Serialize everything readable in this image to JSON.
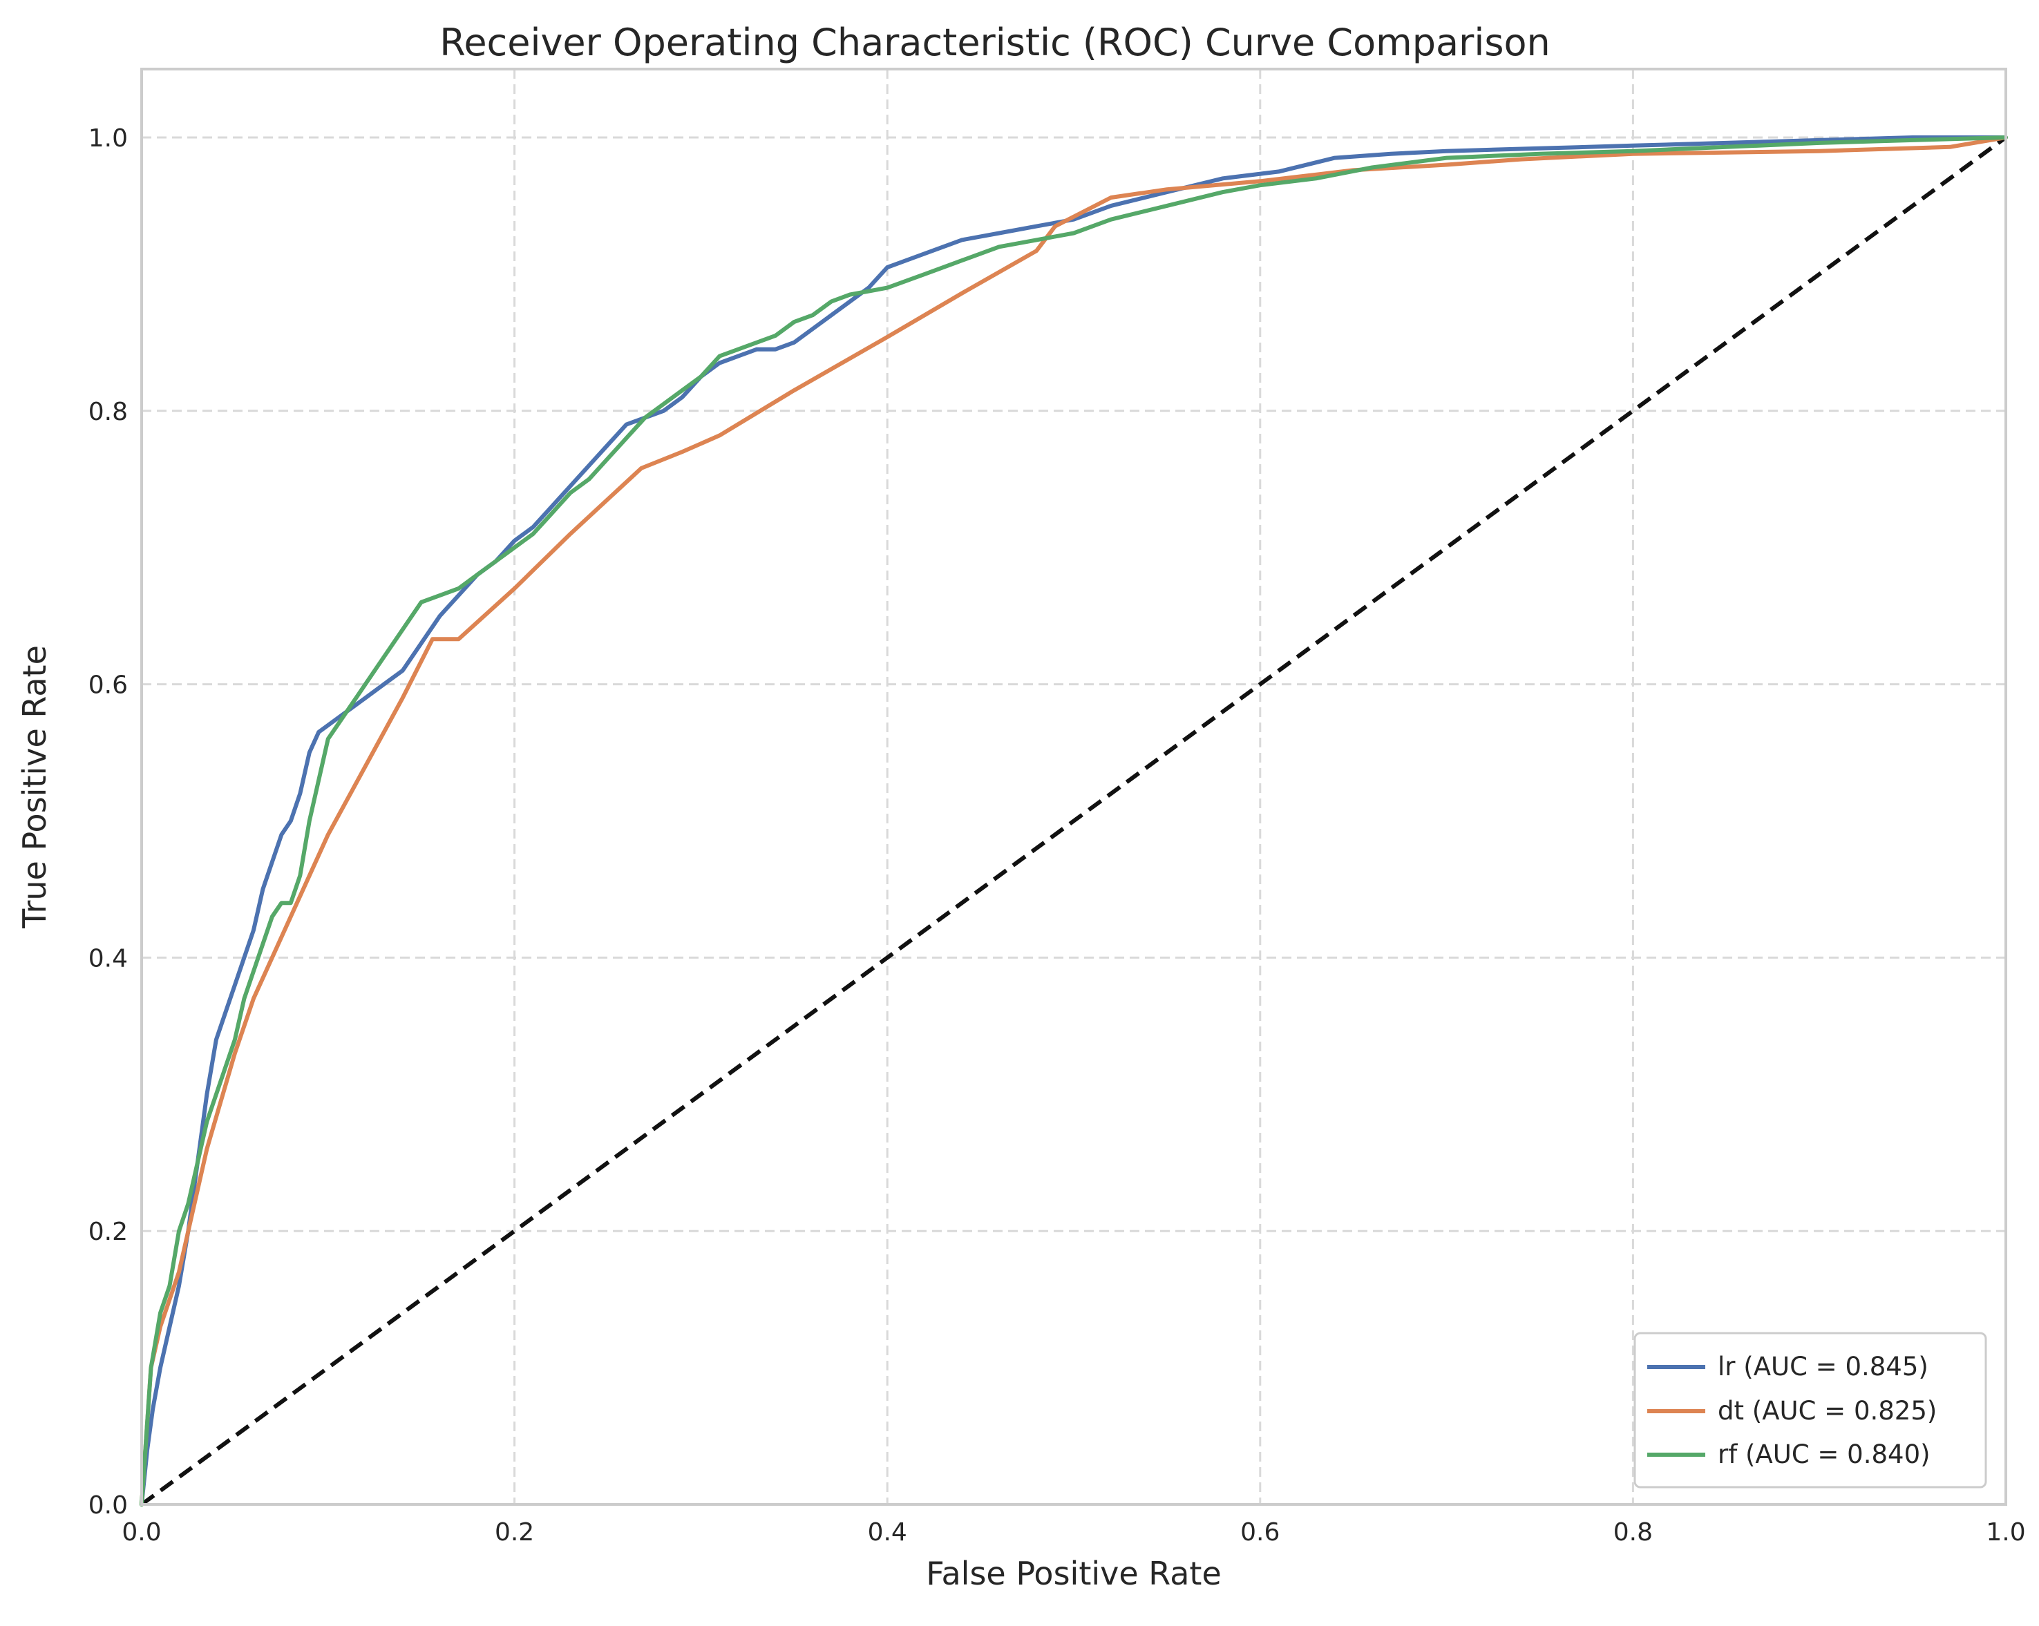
{
  "chart_data": {
    "type": "line",
    "title": "Receiver Operating Characteristic (ROC) Curve Comparison",
    "xlabel": "False Positive Rate",
    "ylabel": "True Positive Rate",
    "xlim": [
      0,
      1
    ],
    "ylim": [
      0,
      1.05
    ],
    "xticks": [
      "0.0",
      "0.2",
      "0.4",
      "0.6",
      "0.8",
      "1.0"
    ],
    "yticks": [
      "0.0",
      "0.2",
      "0.4",
      "0.6",
      "0.8",
      "1.0"
    ],
    "grid": true,
    "legend_position": "lower-right",
    "colors": {
      "lr": "#4c72b0",
      "dt": "#dd8452",
      "rf": "#55a868",
      "diagonal": "#111111"
    },
    "series": [
      {
        "name": "lr (AUC = 0.845)",
        "key": "lr",
        "x": [
          0,
          0.003,
          0.006,
          0.01,
          0.015,
          0.02,
          0.025,
          0.03,
          0.035,
          0.04,
          0.045,
          0.05,
          0.055,
          0.06,
          0.065,
          0.07,
          0.075,
          0.08,
          0.085,
          0.09,
          0.095,
          0.1,
          0.105,
          0.11,
          0.12,
          0.13,
          0.14,
          0.15,
          0.16,
          0.17,
          0.18,
          0.19,
          0.2,
          0.21,
          0.22,
          0.23,
          0.24,
          0.25,
          0.26,
          0.27,
          0.28,
          0.29,
          0.3,
          0.31,
          0.32,
          0.33,
          0.34,
          0.35,
          0.36,
          0.37,
          0.38,
          0.39,
          0.4,
          0.42,
          0.44,
          0.46,
          0.48,
          0.5,
          0.52,
          0.55,
          0.58,
          0.61,
          0.64,
          0.67,
          0.7,
          0.75,
          0.8,
          0.85,
          0.9,
          0.95,
          1.0
        ],
        "y": [
          0,
          0.04,
          0.07,
          0.1,
          0.13,
          0.16,
          0.2,
          0.25,
          0.3,
          0.34,
          0.36,
          0.38,
          0.4,
          0.42,
          0.45,
          0.47,
          0.49,
          0.5,
          0.52,
          0.55,
          0.565,
          0.57,
          0.575,
          0.58,
          0.59,
          0.6,
          0.61,
          0.63,
          0.65,
          0.665,
          0.68,
          0.69,
          0.705,
          0.715,
          0.73,
          0.745,
          0.76,
          0.775,
          0.79,
          0.795,
          0.8,
          0.81,
          0.825,
          0.835,
          0.84,
          0.845,
          0.845,
          0.85,
          0.86,
          0.87,
          0.88,
          0.89,
          0.905,
          0.915,
          0.925,
          0.93,
          0.935,
          0.94,
          0.95,
          0.96,
          0.97,
          0.975,
          0.985,
          0.988,
          0.99,
          0.992,
          0.994,
          0.996,
          0.998,
          1.0,
          1.0
        ]
      },
      {
        "name": "dt (AUC = 0.825)",
        "key": "dt",
        "x": [
          0,
          0.005,
          0.01,
          0.02,
          0.035,
          0.05,
          0.06,
          0.08,
          0.1,
          0.12,
          0.14,
          0.156,
          0.17,
          0.2,
          0.23,
          0.268,
          0.29,
          0.31,
          0.35,
          0.4,
          0.44,
          0.48,
          0.49,
          0.52,
          0.55,
          0.6,
          0.65,
          0.7,
          0.74,
          0.8,
          0.9,
          0.97,
          1.0
        ],
        "y": [
          0,
          0.1,
          0.13,
          0.17,
          0.26,
          0.33,
          0.37,
          0.43,
          0.49,
          0.54,
          0.59,
          0.633,
          0.633,
          0.67,
          0.71,
          0.758,
          0.77,
          0.782,
          0.815,
          0.854,
          0.886,
          0.917,
          0.935,
          0.956,
          0.962,
          0.968,
          0.976,
          0.98,
          0.984,
          0.988,
          0.99,
          0.993,
          1.0
        ]
      },
      {
        "name": "rf (AUC = 0.840)",
        "key": "rf",
        "x": [
          0,
          0.005,
          0.01,
          0.015,
          0.02,
          0.025,
          0.03,
          0.035,
          0.04,
          0.045,
          0.05,
          0.055,
          0.06,
          0.065,
          0.07,
          0.075,
          0.08,
          0.085,
          0.09,
          0.095,
          0.1,
          0.105,
          0.11,
          0.115,
          0.12,
          0.13,
          0.14,
          0.15,
          0.16,
          0.17,
          0.18,
          0.19,
          0.2,
          0.21,
          0.22,
          0.23,
          0.24,
          0.25,
          0.26,
          0.27,
          0.28,
          0.29,
          0.3,
          0.31,
          0.32,
          0.33,
          0.34,
          0.35,
          0.36,
          0.37,
          0.38,
          0.4,
          0.42,
          0.44,
          0.46,
          0.48,
          0.5,
          0.52,
          0.55,
          0.58,
          0.6,
          0.63,
          0.66,
          0.7,
          0.75,
          0.8,
          0.85,
          0.9,
          0.95,
          1.0
        ],
        "y": [
          0,
          0.1,
          0.14,
          0.16,
          0.2,
          0.22,
          0.25,
          0.28,
          0.3,
          0.32,
          0.34,
          0.37,
          0.39,
          0.41,
          0.43,
          0.44,
          0.44,
          0.46,
          0.5,
          0.53,
          0.56,
          0.57,
          0.58,
          0.59,
          0.6,
          0.62,
          0.64,
          0.66,
          0.665,
          0.67,
          0.68,
          0.69,
          0.7,
          0.71,
          0.725,
          0.74,
          0.75,
          0.765,
          0.78,
          0.795,
          0.805,
          0.815,
          0.825,
          0.84,
          0.845,
          0.85,
          0.855,
          0.865,
          0.87,
          0.88,
          0.885,
          0.89,
          0.9,
          0.91,
          0.92,
          0.925,
          0.93,
          0.94,
          0.95,
          0.96,
          0.965,
          0.97,
          0.978,
          0.985,
          0.988,
          0.99,
          0.993,
          0.996,
          0.998,
          1.0
        ]
      }
    ],
    "reference_line": {
      "x": [
        0,
        1
      ],
      "y": [
        0,
        1
      ]
    }
  }
}
